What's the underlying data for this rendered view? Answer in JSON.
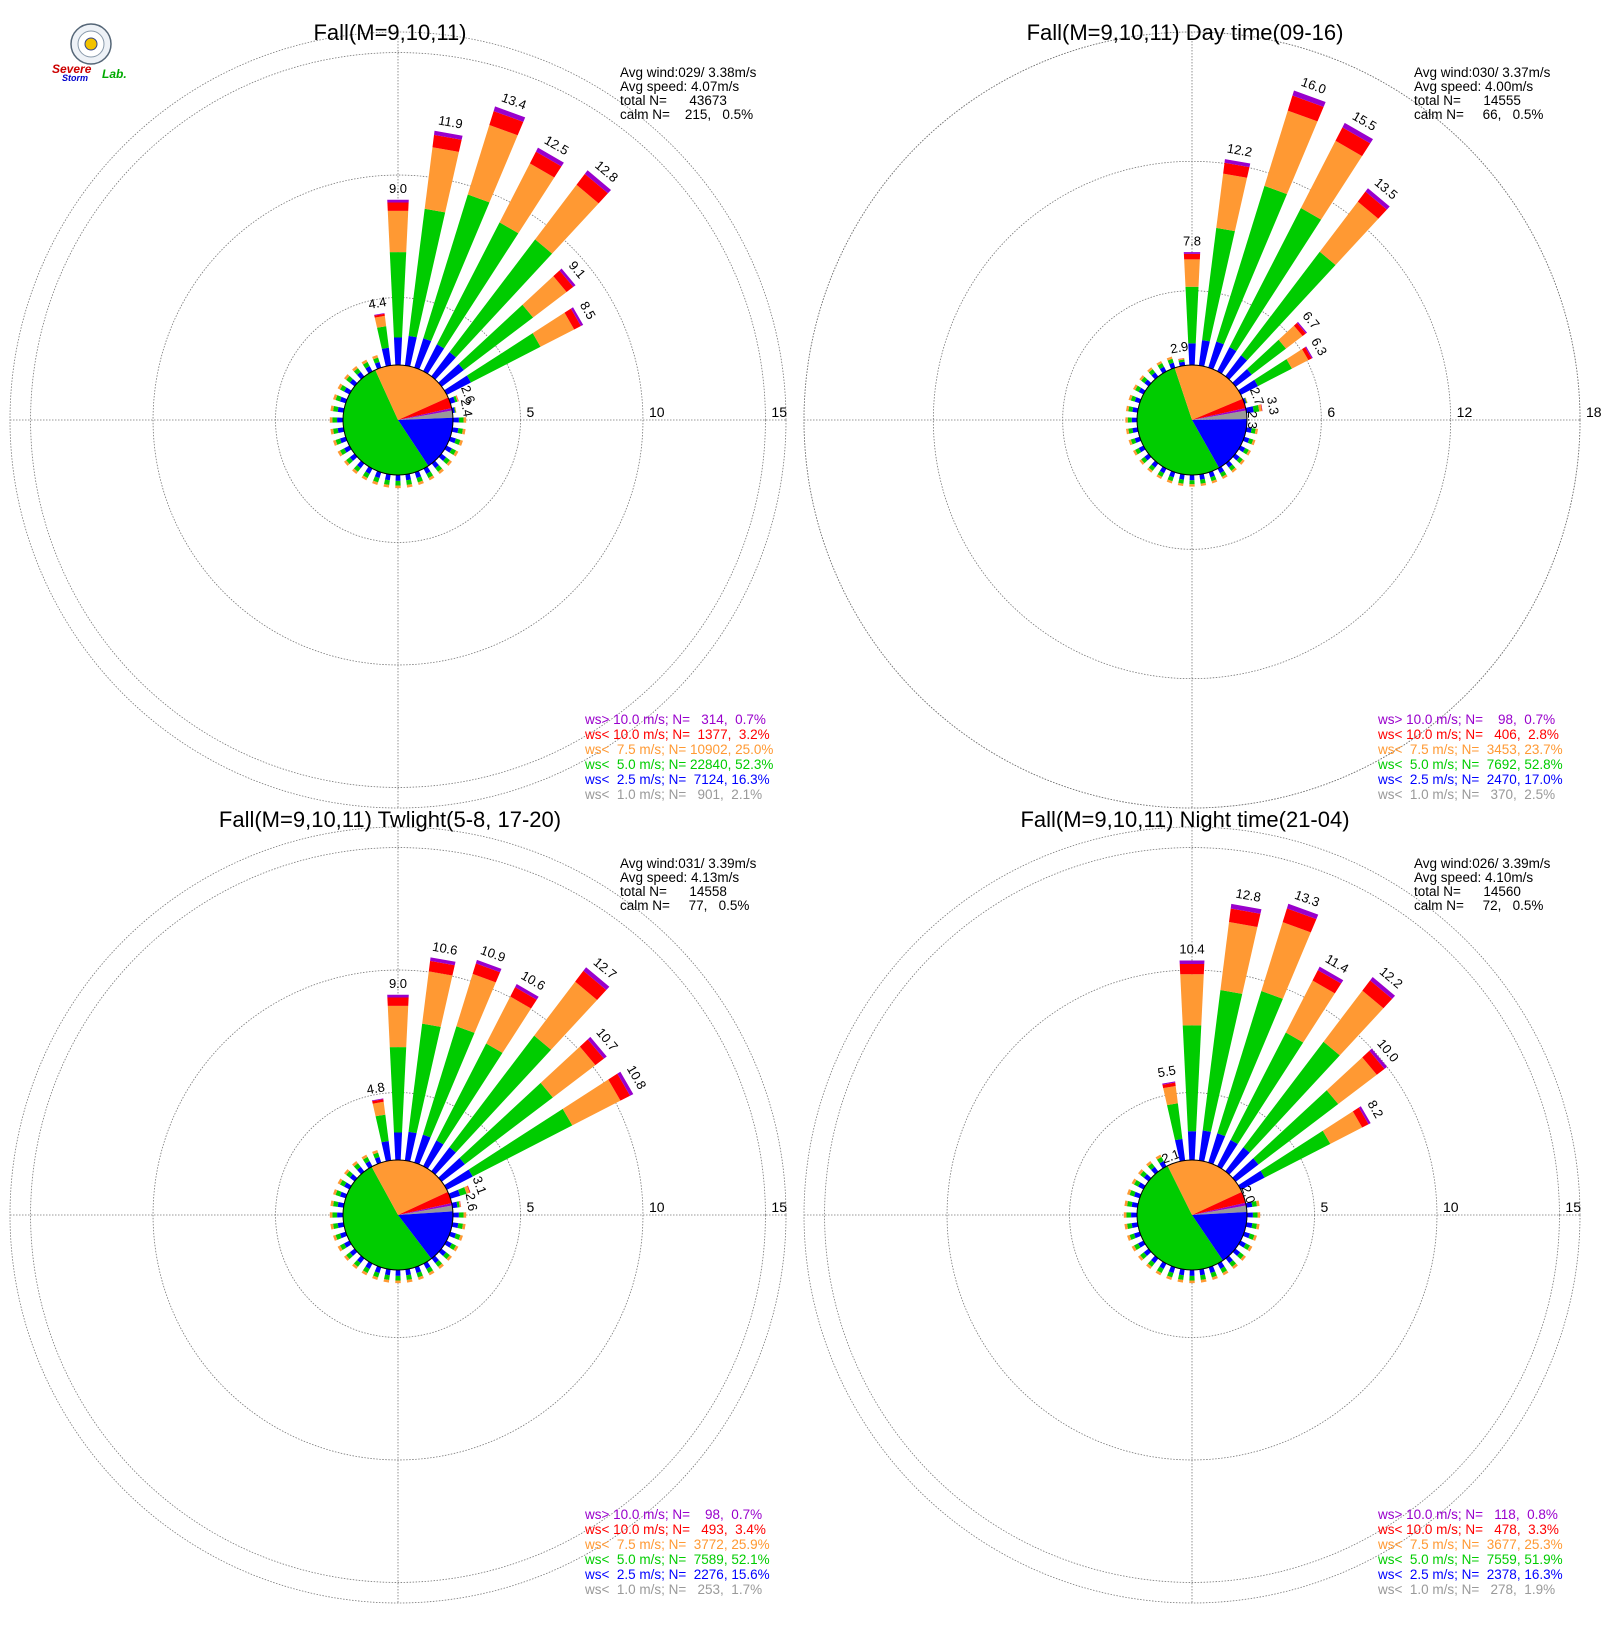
{
  "logo": {
    "word1": "Severe",
    "word2": "Storm",
    "word3": "Lab."
  },
  "colors": {
    "ws_gt10": "#9900cc",
    "ws_lt10": "#ff0000",
    "ws_lt75": "#ff9933",
    "ws_lt50": "#00cc00",
    "ws_lt25": "#0000ff",
    "ws_lt10calm": "#999999",
    "grid": "#666666"
  },
  "chart_data": [
    {
      "type": "windrose",
      "title": "Fall(M=9,10,11)",
      "stats": {
        "avg_wind": "Avg wind:029/ 3.38m/s",
        "avg_speed": "Avg speed: 4.07m/s",
        "total": "total N=      43673",
        "calm": "calm N=    215,   0.5%"
      },
      "rings": [
        5,
        10,
        15
      ],
      "ring_labels": [
        "5",
        "10",
        "15"
      ],
      "direction_bins_deg": [
        0,
        10,
        20,
        30,
        40,
        50,
        60,
        70,
        80,
        90
      ],
      "labeled_bars": [
        {
          "dir": -10,
          "total": 4.4,
          "label": "4.4"
        },
        {
          "dir": 0,
          "total": 9.0,
          "label": "9.0"
        },
        {
          "dir": 10,
          "total": 11.9,
          "label": "11.9"
        },
        {
          "dir": 20,
          "total": 13.4,
          "label": "13.4"
        },
        {
          "dir": 30,
          "total": 12.5,
          "label": "12.5"
        },
        {
          "dir": 40,
          "total": 12.8,
          "label": "12.8"
        },
        {
          "dir": 50,
          "total": 9.1,
          "label": "9.1"
        },
        {
          "dir": 60,
          "total": 8.5,
          "label": "8.5"
        },
        {
          "dir": 70,
          "total": 2.6,
          "label": "2.6"
        },
        {
          "dir": 80,
          "total": 2.4,
          "label": "2.4"
        }
      ],
      "legend": [
        {
          "text": "ws> 10.0 m/s; N=   314,  0.7%",
          "color": "#9900cc"
        },
        {
          "text": "ws< 10.0 m/s; N=  1377,  3.2%",
          "color": "#ff0000"
        },
        {
          "text": "ws<  7.5 m/s; N= 10902, 25.0%",
          "color": "#ff9933"
        },
        {
          "text": "ws<  5.0 m/s; N= 22840, 52.3%",
          "color": "#00cc00"
        },
        {
          "text": "ws<  2.5 m/s; N=  7124, 16.3%",
          "color": "#0000ff"
        },
        {
          "text": "ws<  1.0 m/s; N=   901,  2.1%",
          "color": "#999999"
        }
      ],
      "center_pie": [
        2.1,
        16.3,
        52.3,
        25.0,
        3.2,
        0.7
      ]
    },
    {
      "type": "windrose",
      "title": "Fall(M=9,10,11) Day time(09-16)",
      "stats": {
        "avg_wind": "Avg wind:030/ 3.37m/s",
        "avg_speed": "Avg speed: 4.00m/s",
        "total": "total N=      14555",
        "calm": "calm N=     66,   0.5%"
      },
      "rings": [
        6,
        12,
        18
      ],
      "ring_labels": [
        "6",
        "12",
        "18"
      ],
      "labeled_bars": [
        {
          "dir": -10,
          "total": 2.9,
          "label": "2.9"
        },
        {
          "dir": 0,
          "total": 7.8,
          "label": "7.8"
        },
        {
          "dir": 10,
          "total": 12.2,
          "label": "12.2"
        },
        {
          "dir": 20,
          "total": 16.0,
          "label": "16.0"
        },
        {
          "dir": 30,
          "total": 15.5,
          "label": "15.5"
        },
        {
          "dir": 40,
          "total": 13.5,
          "label": "13.5"
        },
        {
          "dir": 50,
          "total": 6.7,
          "label": "6.7"
        },
        {
          "dir": 60,
          "total": 6.3,
          "label": "6.3"
        },
        {
          "dir": 70,
          "total": 2.7,
          "label": "2.7"
        },
        {
          "dir": 80,
          "total": 3.3,
          "label": "3.3"
        },
        {
          "dir": 90,
          "total": 2.3,
          "label": "2.3"
        }
      ],
      "legend": [
        {
          "text": "ws> 10.0 m/s; N=    98,  0.7%",
          "color": "#9900cc"
        },
        {
          "text": "ws< 10.0 m/s; N=   406,  2.8%",
          "color": "#ff0000"
        },
        {
          "text": "ws<  7.5 m/s; N=  3453, 23.7%",
          "color": "#ff9933"
        },
        {
          "text": "ws<  5.0 m/s; N=  7692, 52.8%",
          "color": "#00cc00"
        },
        {
          "text": "ws<  2.5 m/s; N=  2470, 17.0%",
          "color": "#0000ff"
        },
        {
          "text": "ws<  1.0 m/s; N=   370,  2.5%",
          "color": "#999999"
        }
      ],
      "center_pie": [
        2.5,
        17.0,
        52.8,
        23.7,
        2.8,
        0.7
      ]
    },
    {
      "type": "windrose",
      "title": "Fall(M=9,10,11) Twlight(5-8, 17-20)",
      "stats": {
        "avg_wind": "Avg wind:031/ 3.39m/s",
        "avg_speed": "Avg speed: 4.13m/s",
        "total": "total N=      14558",
        "calm": "calm N=     77,   0.5%"
      },
      "rings": [
        5,
        10,
        15
      ],
      "ring_labels": [
        "5",
        "10",
        "15"
      ],
      "labeled_bars": [
        {
          "dir": -10,
          "total": 4.8,
          "label": "4.8"
        },
        {
          "dir": 0,
          "total": 9.0,
          "label": "9.0"
        },
        {
          "dir": 10,
          "total": 10.6,
          "label": "10.6"
        },
        {
          "dir": 20,
          "total": 10.9,
          "label": "10.9"
        },
        {
          "dir": 30,
          "total": 10.6,
          "label": "10.6"
        },
        {
          "dir": 40,
          "total": 12.7,
          "label": "12.7"
        },
        {
          "dir": 50,
          "total": 10.7,
          "label": "10.7"
        },
        {
          "dir": 60,
          "total": 10.8,
          "label": "10.8"
        },
        {
          "dir": 70,
          "total": 3.1,
          "label": "3.1"
        },
        {
          "dir": 80,
          "total": 2.6,
          "label": "2.6"
        }
      ],
      "legend": [
        {
          "text": "ws> 10.0 m/s; N=    98,  0.7%",
          "color": "#9900cc"
        },
        {
          "text": "ws< 10.0 m/s; N=   493,  3.4%",
          "color": "#ff0000"
        },
        {
          "text": "ws<  7.5 m/s; N=  3772, 25.9%",
          "color": "#ff9933"
        },
        {
          "text": "ws<  5.0 m/s; N=  7589, 52.1%",
          "color": "#00cc00"
        },
        {
          "text": "ws<  2.5 m/s; N=  2276, 15.6%",
          "color": "#0000ff"
        },
        {
          "text": "ws<  1.0 m/s; N=   253,  1.7%",
          "color": "#999999"
        }
      ],
      "center_pie": [
        1.7,
        15.6,
        52.1,
        25.9,
        3.4,
        0.7
      ]
    },
    {
      "type": "windrose",
      "title": "Fall(M=9,10,11) Night time(21-04)",
      "stats": {
        "avg_wind": "Avg wind:026/ 3.39m/s",
        "avg_speed": "Avg speed: 4.10m/s",
        "total": "total N=      14560",
        "calm": "calm N=     72,   0.5%"
      },
      "rings": [
        5,
        10,
        15
      ],
      "ring_labels": [
        "5",
        "10",
        "15"
      ],
      "labeled_bars": [
        {
          "dir": -20,
          "total": 2.1,
          "label": "2.1"
        },
        {
          "dir": -10,
          "total": 5.5,
          "label": "5.5"
        },
        {
          "dir": 0,
          "total": 10.4,
          "label": "10.4"
        },
        {
          "dir": 10,
          "total": 12.8,
          "label": "12.8"
        },
        {
          "dir": 20,
          "total": 13.3,
          "label": "13.3"
        },
        {
          "dir": 30,
          "total": 11.4,
          "label": "11.4"
        },
        {
          "dir": 40,
          "total": 12.2,
          "label": "12.2"
        },
        {
          "dir": 50,
          "total": 10.0,
          "label": "10.0"
        },
        {
          "dir": 60,
          "total": 8.2,
          "label": "8.2"
        },
        {
          "dir": 70,
          "total": 2.0,
          "label": "2.0"
        }
      ],
      "legend": [
        {
          "text": "ws> 10.0 m/s; N=   118,  0.8%",
          "color": "#9900cc"
        },
        {
          "text": "ws< 10.0 m/s; N=   478,  3.3%",
          "color": "#ff0000"
        },
        {
          "text": "ws<  7.5 m/s; N=  3677, 25.3%",
          "color": "#ff9933"
        },
        {
          "text": "ws<  5.0 m/s; N=  7559, 51.9%",
          "color": "#00cc00"
        },
        {
          "text": "ws<  2.5 m/s; N=  2378, 16.3%",
          "color": "#0000ff"
        },
        {
          "text": "ws<  1.0 m/s; N=   278,  1.9%",
          "color": "#999999"
        }
      ],
      "center_pie": [
        1.9,
        16.3,
        51.9,
        25.3,
        3.3,
        0.8
      ]
    }
  ]
}
